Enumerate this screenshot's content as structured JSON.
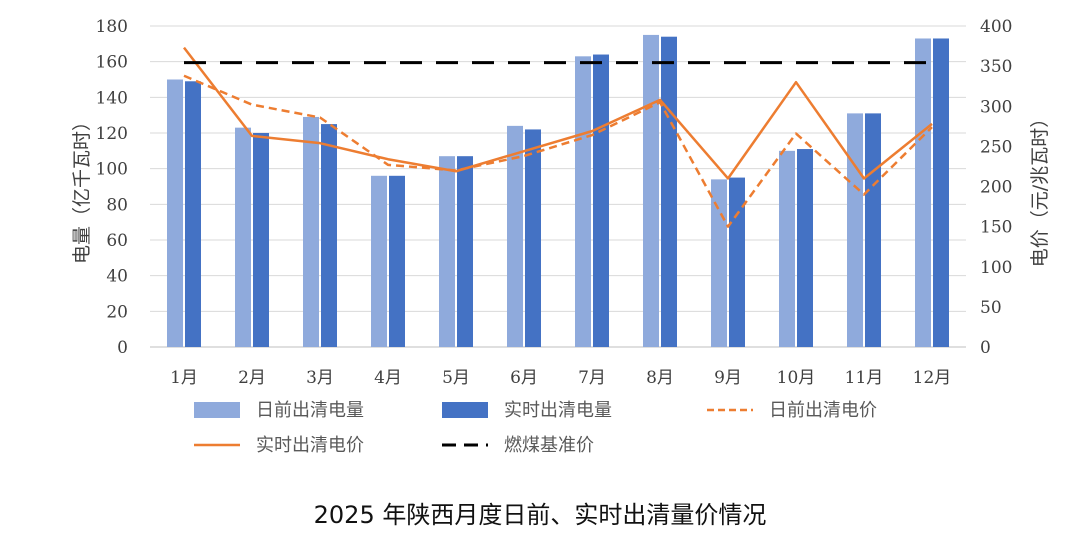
{
  "chart_data": {
    "type": "bar",
    "title": "2025 年陕西月度日前、实时出清量价情况",
    "categories": [
      "1月",
      "2月",
      "3月",
      "4月",
      "5月",
      "6月",
      "7月",
      "8月",
      "9月",
      "10月",
      "11月",
      "12月"
    ],
    "ylabel": "电量（亿千瓦时）",
    "y2label": "电价（元/兆瓦时）",
    "ylim": [
      0,
      180
    ],
    "yticks": [
      0,
      20,
      40,
      60,
      80,
      100,
      120,
      140,
      160,
      180
    ],
    "y2lim": [
      0,
      400
    ],
    "y2ticks": [
      0,
      50,
      100,
      150,
      200,
      250,
      300,
      350,
      400
    ],
    "series": [
      {
        "name": "日前出清电量",
        "type": "bar",
        "axis": "left",
        "color": "#8faadc",
        "values": [
          150,
          123,
          129,
          96,
          107,
          124,
          163,
          175,
          94,
          110,
          131,
          173
        ]
      },
      {
        "name": "实时出清电量",
        "type": "bar",
        "axis": "left",
        "color": "#4472c4",
        "values": [
          149,
          120,
          125,
          96,
          107,
          122,
          164,
          174,
          95,
          111,
          131,
          173
        ]
      },
      {
        "name": "日前出清电价",
        "type": "line",
        "style": "dashed",
        "axis": "right",
        "color": "#ed7d31",
        "values": [
          338,
          302,
          286,
          227,
          220,
          238,
          264,
          305,
          150,
          266,
          190,
          274
        ]
      },
      {
        "name": "实时出清电价",
        "type": "line",
        "style": "solid",
        "axis": "right",
        "color": "#ed7d31",
        "values": [
          373,
          263,
          254,
          234,
          219,
          244,
          269,
          308,
          210,
          330,
          210,
          278
        ]
      },
      {
        "name": "燃煤基准价",
        "type": "line",
        "style": "longdash",
        "axis": "right",
        "color": "#000000",
        "values": [
          354.4,
          354.4,
          354.4,
          354.4,
          354.4,
          354.4,
          354.4,
          354.4,
          354.4,
          354.4,
          354.4,
          354.4
        ]
      }
    ],
    "grid": true,
    "legend": "bottom"
  }
}
